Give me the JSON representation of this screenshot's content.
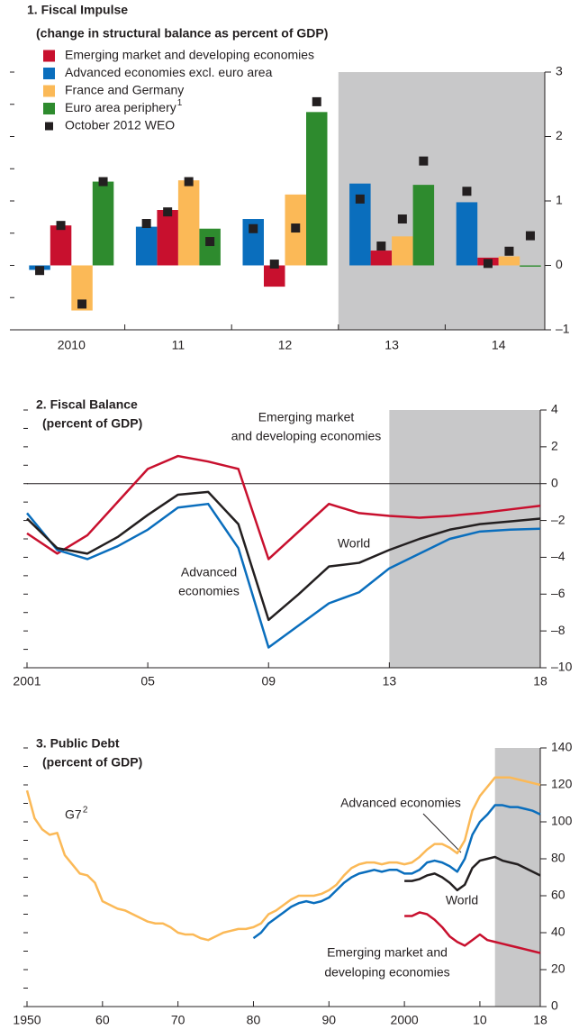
{
  "chart_data": [
    {
      "type": "bar",
      "title": "1. Fiscal Impulse",
      "subtitle": "(change in structural balance as percent of GDP)",
      "categories": [
        "2010",
        "11",
        "12",
        "13",
        "14"
      ],
      "series": [
        {
          "name": "Emerging market and developing economies",
          "color": "#c8102e",
          "values": [
            0.62,
            0.86,
            -0.33,
            0.23,
            0.12
          ]
        },
        {
          "name": "Advanced economies excl. euro area",
          "color": "#0a6ebd",
          "values": [
            -0.07,
            0.6,
            0.72,
            1.27,
            0.98
          ]
        },
        {
          "name": "France and Germany",
          "color": "#fbb957",
          "values": [
            -0.7,
            1.32,
            1.1,
            0.45,
            0.14
          ]
        },
        {
          "name": "Euro area periphery",
          "footnote": "1",
          "color": "#2e8b2e",
          "values": [
            1.3,
            0.57,
            2.38,
            1.25,
            -0.02
          ]
        },
        {
          "name": "October 2012 WEO",
          "type": "marker",
          "color": "#231f20",
          "values": [
            [
              0.62,
              0.83,
              0.02,
              0.3,
              0.03
            ],
            [
              -0.08,
              0.65,
              0.57,
              1.03,
              1.15
            ],
            [
              -0.6,
              1.3,
              0.58,
              0.72,
              0.22
            ],
            [
              1.3,
              0.37,
              2.54,
              1.62,
              0.46
            ]
          ]
        }
      ],
      "ylim": [
        -1,
        3
      ],
      "yticks": [
        {
          "value": -1,
          "label": "–1"
        },
        0,
        1,
        2,
        3
      ],
      "y_axis_side": "right",
      "shade_from": "13",
      "shade_color": "#c8c8c9",
      "legend": "top-left"
    },
    {
      "type": "line",
      "title": "2. Fiscal Balance",
      "subtitle": "(percent of GDP)",
      "x": [
        2001,
        2002,
        2003,
        2004,
        2005,
        2006,
        2007,
        2008,
        2009,
        2010,
        2011,
        2012,
        2013,
        2014,
        2015,
        2016,
        2017,
        2018
      ],
      "series": [
        {
          "label_lines": [
            "Emerging market",
            "and developing economies"
          ],
          "color": "#c8102e",
          "values": [
            -2.7,
            -3.8,
            -2.8,
            -1.0,
            0.8,
            1.5,
            1.2,
            0.8,
            -4.1,
            -2.6,
            -1.1,
            -1.6,
            -1.75,
            -1.85,
            -1.75,
            -1.6,
            -1.4,
            -1.2
          ]
        },
        {
          "label_lines": [
            "Advanced",
            "economies"
          ],
          "color": "#0a6ebd",
          "values": [
            -1.6,
            -3.6,
            -4.1,
            -3.4,
            -2.5,
            -1.3,
            -1.1,
            -3.5,
            -8.9,
            -7.7,
            -6.5,
            -5.9,
            -4.6,
            -3.8,
            -3.0,
            -2.6,
            -2.5,
            -2.45
          ]
        },
        {
          "label_lines": [
            "World"
          ],
          "color": "#231f20",
          "values": [
            -1.9,
            -3.5,
            -3.8,
            -2.9,
            -1.7,
            -0.6,
            -0.45,
            -2.2,
            -7.4,
            -6.0,
            -4.5,
            -4.3,
            -3.6,
            -3.0,
            -2.5,
            -2.2,
            -2.05,
            -1.9
          ]
        }
      ],
      "xlim": [
        2001,
        2018
      ],
      "xticks": [
        2001,
        {
          "value": 2005,
          "label": "05"
        },
        {
          "value": 2009,
          "label": "09"
        },
        {
          "value": 2013,
          "label": "13"
        },
        {
          "value": 2018,
          "label": "18"
        }
      ],
      "ylim": [
        -10,
        4
      ],
      "yticks": [
        {
          "value": -10,
          "label": "–10"
        },
        {
          "value": -8,
          "label": "–8"
        },
        {
          "value": -6,
          "label": "–6"
        },
        {
          "value": -4,
          "label": "–4"
        },
        {
          "value": -2,
          "label": "–2"
        },
        0,
        2,
        4
      ],
      "y_axis_side": "right",
      "zero_line": true,
      "shade": [
        2013,
        2018
      ],
      "shade_color": "#c8c8c9"
    },
    {
      "type": "line",
      "title": "3. Public Debt",
      "subtitle": "(percent of GDP)",
      "x": [
        1950,
        1951,
        1952,
        1953,
        1954,
        1955,
        1956,
        1957,
        1958,
        1959,
        1960,
        1961,
        1962,
        1963,
        1964,
        1965,
        1966,
        1967,
        1968,
        1969,
        1970,
        1971,
        1972,
        1973,
        1974,
        1975,
        1976,
        1977,
        1978,
        1979,
        1980,
        1981,
        1982,
        1983,
        1984,
        1985,
        1986,
        1987,
        1988,
        1989,
        1990,
        1991,
        1992,
        1993,
        1994,
        1995,
        1996,
        1997,
        1998,
        1999,
        2000,
        2001,
        2002,
        2003,
        2004,
        2005,
        2006,
        2007,
        2008,
        2009,
        2010,
        2011,
        2012,
        2013,
        2014,
        2015,
        2016,
        2017,
        2018
      ],
      "series": [
        {
          "label_lines": [
            "G7"
          ],
          "footnote": "2",
          "color": "#fbb957",
          "values": [
            117,
            102,
            96,
            93,
            94,
            82,
            77,
            72,
            71,
            67,
            57,
            55,
            53,
            52,
            50,
            48,
            46,
            45,
            45,
            43,
            40,
            39,
            39,
            37,
            36,
            38,
            40,
            41,
            42,
            42,
            43,
            45,
            50,
            52,
            55,
            58,
            60,
            60,
            60,
            61,
            63,
            66,
            71,
            75,
            77,
            78,
            78,
            77,
            78,
            78,
            77,
            78,
            81,
            85,
            88,
            88,
            86,
            83,
            90,
            106,
            114,
            119,
            124,
            124,
            124,
            123,
            122,
            121,
            120
          ]
        },
        {
          "label_lines": [
            "Advanced economies"
          ],
          "color": "#0a6ebd",
          "values": [
            null,
            null,
            null,
            null,
            null,
            null,
            null,
            null,
            null,
            null,
            null,
            null,
            null,
            null,
            null,
            null,
            null,
            null,
            null,
            null,
            null,
            null,
            null,
            null,
            null,
            null,
            null,
            null,
            null,
            null,
            37,
            40,
            45,
            48,
            51,
            54,
            56,
            57,
            56,
            57,
            59,
            63,
            67,
            70,
            72,
            73,
            74,
            73,
            74,
            74,
            72,
            72,
            74,
            78,
            79,
            78,
            76,
            73,
            80,
            93,
            100,
            104,
            109,
            109,
            108,
            108,
            107,
            106,
            104
          ]
        },
        {
          "label_lines": [
            "World"
          ],
          "color": "#231f20",
          "values": [
            null,
            null,
            null,
            null,
            null,
            null,
            null,
            null,
            null,
            null,
            null,
            null,
            null,
            null,
            null,
            null,
            null,
            null,
            null,
            null,
            null,
            null,
            null,
            null,
            null,
            null,
            null,
            null,
            null,
            null,
            null,
            null,
            null,
            null,
            null,
            null,
            null,
            null,
            null,
            null,
            null,
            null,
            null,
            null,
            null,
            null,
            null,
            null,
            null,
            null,
            68,
            68,
            69,
            71,
            72,
            70,
            67,
            63,
            66,
            75,
            79,
            80,
            81,
            79,
            78,
            77,
            75,
            73,
            71
          ]
        },
        {
          "label_lines": [
            "Emerging market and",
            "developing economies"
          ],
          "color": "#c8102e",
          "values": [
            null,
            null,
            null,
            null,
            null,
            null,
            null,
            null,
            null,
            null,
            null,
            null,
            null,
            null,
            null,
            null,
            null,
            null,
            null,
            null,
            null,
            null,
            null,
            null,
            null,
            null,
            null,
            null,
            null,
            null,
            null,
            null,
            null,
            null,
            null,
            null,
            null,
            null,
            null,
            null,
            null,
            null,
            null,
            null,
            null,
            null,
            null,
            null,
            null,
            null,
            49,
            49,
            51,
            50,
            47,
            43,
            38,
            35,
            33,
            36,
            39,
            36,
            35,
            34,
            33,
            32,
            31,
            30,
            29
          ]
        }
      ],
      "xlim": [
        1950,
        2018
      ],
      "xticks": [
        1950,
        {
          "value": 1960,
          "label": "60"
        },
        {
          "value": 1970,
          "label": "70"
        },
        {
          "value": 1980,
          "label": "80"
        },
        {
          "value": 1990,
          "label": "90"
        },
        2000,
        {
          "value": 2010,
          "label": "10"
        },
        {
          "value": 2018,
          "label": "18"
        }
      ],
      "ylim": [
        0,
        140
      ],
      "yticks": [
        0,
        20,
        40,
        60,
        80,
        100,
        120,
        140
      ],
      "y_axis_side": "right",
      "shade": [
        2012,
        2018
      ],
      "shade_color": "#c8c8c9"
    }
  ]
}
